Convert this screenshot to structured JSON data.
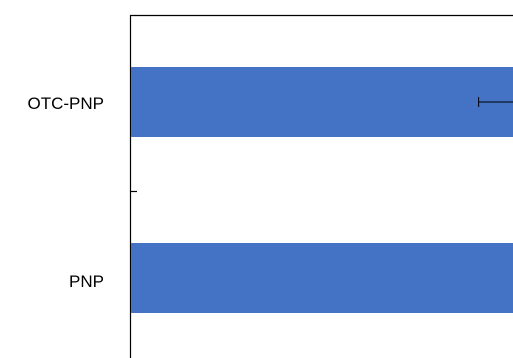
{
  "chart_data": {
    "type": "bar",
    "orientation": "horizontal",
    "categories": [
      "OTC-PNP",
      "PNP"
    ],
    "series": [
      {
        "values": [
          1.0,
          1.0
        ],
        "error": [
          0.09,
          null
        ],
        "color": "#4472C4"
      }
    ],
    "title": "",
    "xlabel": "",
    "ylabel": "",
    "xlim": [
      0,
      1
    ],
    "grid": false,
    "legend": "none",
    "clipped": "right"
  }
}
